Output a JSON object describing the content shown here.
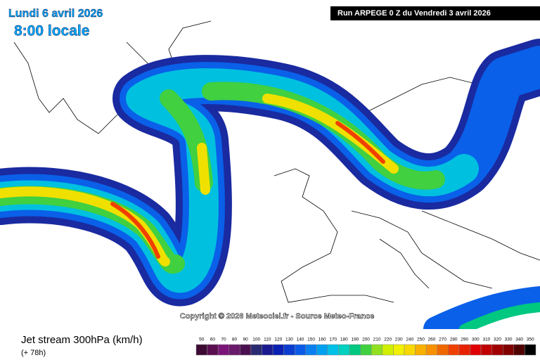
{
  "header": {
    "date": "Lundi 6 avril 2026",
    "time": "8:00 locale",
    "run": "Run ARPEGE 0 Z du Vendredi 3 avril 2026"
  },
  "copyright": "Copyright © 2026 Meteociel.fr - Source Meteo-France",
  "footer": {
    "title": "Jet stream 300hPa (km/h)",
    "lead": "(+ 78h)"
  },
  "scale": {
    "labels": [
      50,
      60,
      70,
      80,
      90,
      100,
      110,
      120,
      130,
      140,
      150,
      160,
      170,
      180,
      190,
      200,
      210,
      220,
      230,
      240,
      250,
      260,
      270,
      280,
      290,
      300,
      310,
      320,
      330,
      340,
      350
    ],
    "colors": [
      "#3c0a32",
      "#5a0f50",
      "#7a1478",
      "#6a1a6a",
      "#4a1050",
      "#2a2a70",
      "#1a1a90",
      "#0a20b0",
      "#0a3cd0",
      "#0a5ae8",
      "#0a80f0",
      "#00a0f0",
      "#00c0e8",
      "#00d0c0",
      "#00c880",
      "#40d040",
      "#90e020",
      "#d0f000",
      "#f0f000",
      "#f8d800",
      "#f8b000",
      "#f89000",
      "#f06800",
      "#f04000",
      "#e82000",
      "#e00000",
      "#c00000",
      "#a00000",
      "#800000",
      "#500000",
      "#000000"
    ]
  }
}
